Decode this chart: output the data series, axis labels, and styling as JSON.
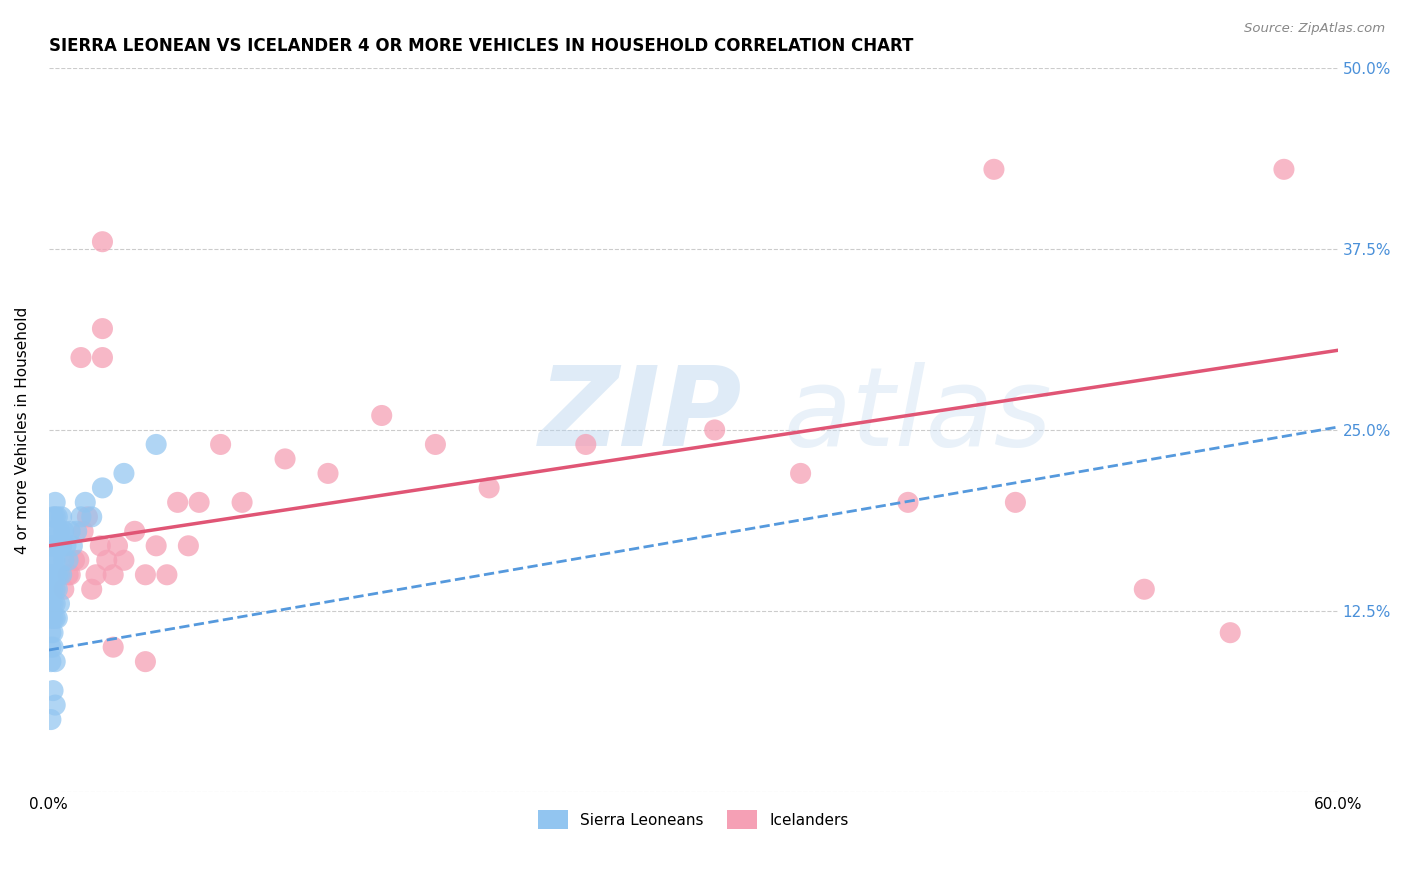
{
  "title": "SIERRA LEONEAN VS ICELANDER 4 OR MORE VEHICLES IN HOUSEHOLD CORRELATION CHART",
  "source": "Source: ZipAtlas.com",
  "ylabel": "4 or more Vehicles in Household",
  "xlim": [
    0.0,
    0.6
  ],
  "ylim": [
    0.0,
    0.5
  ],
  "xtick_positions": [
    0.0,
    0.1,
    0.2,
    0.3,
    0.4,
    0.5,
    0.6
  ],
  "xtick_labels": [
    "0.0%",
    "",
    "",
    "",
    "",
    "",
    "60.0%"
  ],
  "ytick_positions": [
    0.0,
    0.125,
    0.25,
    0.375,
    0.5
  ],
  "yticklabels_right": [
    "",
    "12.5%",
    "25.0%",
    "37.5%",
    "50.0%"
  ],
  "color_sierra": "#92C5F0",
  "color_icelander": "#F5A0B5",
  "color_line_sierra": "#5599DD",
  "color_line_icelander": "#E05575",
  "watermark": "ZIPatlas",
  "sl_x": [
    0.001,
    0.001,
    0.001,
    0.001,
    0.001,
    0.001,
    0.001,
    0.001,
    0.001,
    0.001,
    0.002,
    0.002,
    0.002,
    0.002,
    0.002,
    0.002,
    0.002,
    0.002,
    0.002,
    0.002,
    0.003,
    0.003,
    0.003,
    0.003,
    0.003,
    0.003,
    0.003,
    0.003,
    0.003,
    0.003,
    0.004,
    0.004,
    0.004,
    0.004,
    0.004,
    0.004,
    0.005,
    0.005,
    0.005,
    0.005,
    0.006,
    0.006,
    0.006,
    0.007,
    0.007,
    0.008,
    0.009,
    0.01,
    0.011,
    0.013,
    0.015,
    0.017,
    0.02,
    0.025,
    0.035,
    0.05
  ],
  "sl_y": [
    0.17,
    0.16,
    0.15,
    0.14,
    0.13,
    0.12,
    0.11,
    0.1,
    0.09,
    0.05,
    0.19,
    0.18,
    0.16,
    0.15,
    0.14,
    0.13,
    0.12,
    0.11,
    0.1,
    0.07,
    0.2,
    0.19,
    0.17,
    0.16,
    0.15,
    0.14,
    0.13,
    0.12,
    0.09,
    0.06,
    0.19,
    0.18,
    0.17,
    0.15,
    0.14,
    0.12,
    0.18,
    0.17,
    0.15,
    0.13,
    0.19,
    0.17,
    0.15,
    0.18,
    0.16,
    0.17,
    0.16,
    0.18,
    0.17,
    0.18,
    0.19,
    0.2,
    0.19,
    0.21,
    0.22,
    0.24
  ],
  "ic_x": [
    0.007,
    0.009,
    0.01,
    0.012,
    0.014,
    0.015,
    0.016,
    0.018,
    0.02,
    0.022,
    0.024,
    0.025,
    0.025,
    0.027,
    0.03,
    0.032,
    0.035,
    0.04,
    0.045,
    0.05,
    0.055,
    0.06,
    0.065,
    0.07,
    0.08,
    0.09,
    0.11,
    0.13,
    0.155,
    0.18,
    0.205,
    0.25,
    0.31,
    0.35,
    0.4,
    0.44,
    0.45,
    0.51,
    0.55,
    0.575,
    0.025,
    0.03,
    0.045
  ],
  "ic_y": [
    0.14,
    0.15,
    0.15,
    0.16,
    0.16,
    0.3,
    0.18,
    0.19,
    0.14,
    0.15,
    0.17,
    0.32,
    0.3,
    0.16,
    0.15,
    0.17,
    0.16,
    0.18,
    0.15,
    0.17,
    0.15,
    0.2,
    0.17,
    0.2,
    0.24,
    0.2,
    0.23,
    0.22,
    0.26,
    0.24,
    0.21,
    0.24,
    0.25,
    0.22,
    0.2,
    0.43,
    0.2,
    0.14,
    0.11,
    0.43,
    0.38,
    0.1,
    0.09
  ]
}
